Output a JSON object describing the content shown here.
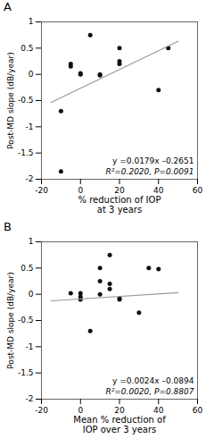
{
  "chart_data": [
    {
      "type": "scatter",
      "title": "A",
      "xlabel": "% reduction of IOP\nat 3 years",
      "ylabel": "Post-MD slope (dB/year)",
      "series": [
        {
          "type": "scatter",
          "color": "#111111",
          "x": [
            -10,
            -10,
            -5,
            -5,
            0,
            0,
            5,
            10,
            10,
            20,
            20,
            20,
            40,
            45
          ],
          "values": [
            -1.85,
            -0.7,
            0.15,
            0.2,
            0.02,
            0.0,
            0.75,
            -0.02,
            0.0,
            0.5,
            0.25,
            0.2,
            -0.3,
            0.5
          ]
        },
        {
          "type": "line",
          "color": "#999999",
          "x": [
            -15,
            50
          ],
          "values": [
            -0.5336,
            0.6299
          ]
        }
      ],
      "annotations": [
        "y =0.0179x –0.2651",
        "R²=0.2020, P=0.0091"
      ],
      "xlim": [
        -20,
        60
      ],
      "ylim": [
        -2,
        1
      ],
      "xticks": [
        -20,
        0,
        20,
        40,
        60
      ],
      "yticks": [
        -2,
        -1.5,
        -1,
        -0.5,
        0,
        0.5,
        1
      ]
    },
    {
      "type": "scatter",
      "title": "B",
      "xlabel": "Mean % reduction of\nIOP over 3 years",
      "ylabel": "Post-MD slope (dB/year)",
      "series": [
        {
          "type": "scatter",
          "color": "#111111",
          "x": [
            -5,
            0,
            0,
            0,
            5,
            10,
            10,
            10,
            15,
            15,
            15,
            20,
            20,
            30,
            35,
            40
          ],
          "values": [
            0.02,
            0.02,
            -0.05,
            -0.1,
            -0.7,
            0.25,
            0.5,
            0.0,
            0.75,
            0.2,
            0.1,
            -0.08,
            -0.1,
            -0.35,
            0.5,
            0.48
          ]
        },
        {
          "type": "line",
          "color": "#999999",
          "x": [
            -15,
            50
          ],
          "values": [
            -0.1254,
            0.0306
          ]
        }
      ],
      "annotations": [
        "y =0.0024x –0.0894",
        "R²=0.0020, P=0.8807"
      ],
      "xlim": [
        -20,
        60
      ],
      "ylim": [
        -2,
        1
      ],
      "xticks": [
        -20,
        0,
        20,
        40,
        60
      ],
      "yticks": [
        -2,
        -1.5,
        -1,
        -0.5,
        0,
        0.5,
        1
      ]
    }
  ]
}
